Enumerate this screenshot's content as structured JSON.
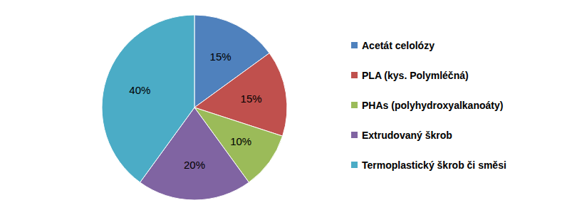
{
  "chart_data": {
    "type": "pie",
    "categories": [
      "Acetát celolózy",
      "PLA (kys. Polymléčná)",
      "PHAs (polyhydroxyalkanoáty)",
      "Extrudovaný škrob",
      "Termoplastický škrob či směsi"
    ],
    "values": [
      15,
      15,
      10,
      20,
      40
    ],
    "value_labels": [
      "15%",
      "15%",
      "10%",
      "20%",
      "40%"
    ],
    "colors": [
      "#4f81bd",
      "#c0504d",
      "#9bbb59",
      "#8064a2",
      "#4bacc6"
    ],
    "data_labels": true,
    "legend": "right"
  }
}
